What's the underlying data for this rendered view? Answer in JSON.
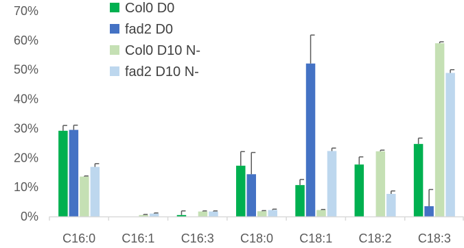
{
  "chart_data": {
    "type": "bar",
    "title": "",
    "xlabel": "",
    "ylabel": "",
    "categories": [
      "C16:0",
      "C16:1",
      "C16:3",
      "C18:0",
      "C18:1",
      "C18:2",
      "C18:3"
    ],
    "ylim": [
      0,
      70
    ],
    "yticks": [
      "0%",
      "10%",
      "20%",
      "30%",
      "40%",
      "50%",
      "60%",
      "70%"
    ],
    "grid": false,
    "legend_position": "top-right",
    "series": [
      {
        "name": "Col0 D0",
        "color": "#00b050",
        "values": [
          29.2,
          0.0,
          0.5,
          17.3,
          10.7,
          17.7,
          24.7
        ],
        "errors": [
          1.8,
          0.0,
          1.4,
          4.8,
          1.9,
          2.6,
          2.0
        ]
      },
      {
        "name": "fad2 D0",
        "color": "#4472c4",
        "values": [
          29.5,
          0.0,
          0.0,
          14.4,
          52.1,
          0.0,
          3.5
        ],
        "errors": [
          1.6,
          0.0,
          0.0,
          7.4,
          9.7,
          0.0,
          5.7
        ]
      },
      {
        "name": "Col0 D10 N-",
        "color": "#c5e0b4",
        "values": [
          13.6,
          0.5,
          1.7,
          1.8,
          2.2,
          22.2,
          59.0
        ],
        "errors": [
          0.2,
          0.2,
          0.2,
          0.2,
          0.2,
          0.4,
          0.5
        ]
      },
      {
        "name": "fad2 D10 N-",
        "color": "#bdd7ee",
        "values": [
          16.9,
          1.0,
          1.7,
          2.2,
          22.3,
          7.7,
          48.9
        ],
        "errors": [
          1.1,
          0.2,
          0.2,
          0.3,
          1.0,
          1.0,
          1.1
        ]
      }
    ]
  }
}
